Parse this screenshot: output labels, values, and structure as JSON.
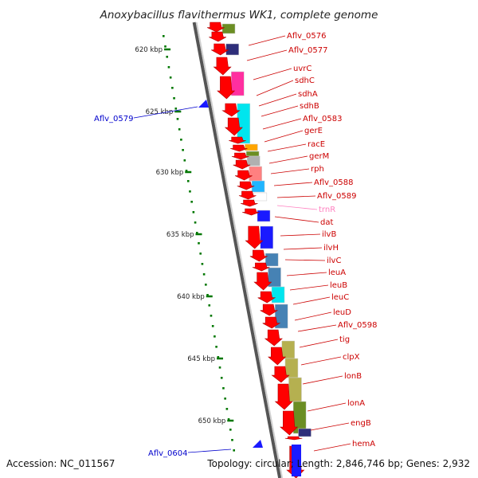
{
  "title": "Anoxybacillus flavithermus WK1, complete genome",
  "footer": {
    "accession": "Accession: NC_011567",
    "summary": "Topology: circular; Length: 2,846,746 bp; Genes: 2,932"
  },
  "colors": {
    "forward_gene": "#ff0000",
    "reverse_gene": "#1a1aff",
    "rna_label": "#ff80c0",
    "forward_label": "#cc0000",
    "reverse_label": "#0000cc",
    "tick": "#007700",
    "backbone": "#888888"
  },
  "ticks": [
    {
      "label": "620 kbp",
      "kbp": 620
    },
    {
      "label": "625 kbp",
      "kbp": 625
    },
    {
      "label": "630 kbp",
      "kbp": 630
    },
    {
      "label": "635 kbp",
      "kbp": 635
    },
    {
      "label": "640 kbp",
      "kbp": 640
    },
    {
      "label": "645 kbp",
      "kbp": 645
    },
    {
      "label": "650 kbp",
      "kbp": 650
    }
  ],
  "cog_colors": [
    "#6b8e23",
    "#2e2e7a",
    "#ff2fa0",
    "#00e5ee",
    "#ffa500",
    "#6b8e23",
    "#b0b0b0",
    "#ff8080",
    "#1fb5ff",
    "#ffffff",
    "#1a1aff",
    "#1a1aff",
    "#4682b4",
    "#4682b4",
    "#00e5ee",
    "#4682b4",
    "#b5b050",
    "#b5b050",
    "#b5b050"
  ],
  "forward_genes": [
    {
      "name": "Aflv_0576"
    },
    {
      "name": "Aflv_0577"
    },
    {
      "name": "uvrC"
    },
    {
      "name": "sdhC"
    },
    {
      "name": "sdhA"
    },
    {
      "name": "sdhB"
    },
    {
      "name": "Aflv_0583"
    },
    {
      "name": "gerE"
    },
    {
      "name": "racE"
    },
    {
      "name": "gerM"
    },
    {
      "name": "rph"
    },
    {
      "name": "Aflv_0588"
    },
    {
      "name": "Aflv_0589"
    },
    {
      "name": "trnR",
      "kind": "rna"
    },
    {
      "name": "dat"
    },
    {
      "name": "ilvB"
    },
    {
      "name": "ilvH"
    },
    {
      "name": "ilvC"
    },
    {
      "name": "leuA"
    },
    {
      "name": "leuB"
    },
    {
      "name": "leuC"
    },
    {
      "name": "leuD"
    },
    {
      "name": "Aflv_0598"
    },
    {
      "name": "tig"
    },
    {
      "name": "clpX"
    },
    {
      "name": "lonB"
    },
    {
      "name": "lonA"
    },
    {
      "name": "engB"
    },
    {
      "name": "hemA"
    }
  ],
  "reverse_genes": [
    {
      "name": "Aflv_0579"
    },
    {
      "name": "Aflv_0604"
    }
  ]
}
